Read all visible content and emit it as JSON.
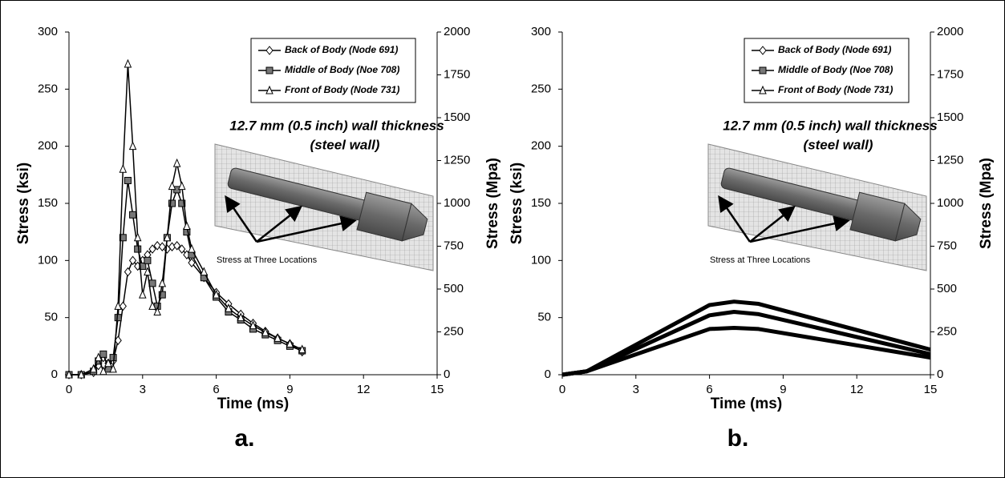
{
  "chart_data": [
    {
      "type": "line",
      "label": "a.",
      "xlabel": "Time (ms)",
      "ylabel": "Stress (ksi)",
      "y2label": "Stress (Mpa)",
      "annotations": [
        "12.7 mm (0.5 inch) wall thickness",
        "(steel wall)",
        "Stress at Three Locations"
      ],
      "xlim": [
        0,
        15
      ],
      "xticks": [
        0,
        3,
        6,
        9,
        12,
        15
      ],
      "ylim": [
        0,
        300
      ],
      "yticks": [
        0,
        50,
        100,
        150,
        200,
        250,
        300
      ],
      "y2lim": [
        0,
        2000
      ],
      "y2ticks": [
        0,
        250,
        500,
        750,
        1000,
        1250,
        1500,
        1750,
        2000
      ],
      "markers": true,
      "line_width": 1.5,
      "x": [
        0,
        0.5,
        1,
        1.2,
        1.4,
        1.6,
        1.8,
        2,
        2.2,
        2.4,
        2.6,
        2.8,
        3,
        3.2,
        3.4,
        3.6,
        3.8,
        4,
        4.2,
        4.4,
        4.6,
        4.8,
        5,
        5.5,
        6,
        6.5,
        7,
        7.5,
        8,
        8.5,
        9,
        9.5
      ],
      "series": [
        {
          "name": "Back of Body (Node 691)",
          "color": "#000000",
          "marker": "diamond",
          "values": [
            0,
            0,
            2,
            8,
            15,
            10,
            12,
            30,
            60,
            90,
            100,
            95,
            100,
            105,
            110,
            113,
            112,
            110,
            112,
            113,
            110,
            105,
            98,
            85,
            72,
            62,
            53,
            45,
            38,
            32,
            27,
            20
          ]
        },
        {
          "name": "Middle of Body (Noe 708)",
          "color": "#000000",
          "marker": "square",
          "values": [
            0,
            0,
            3,
            12,
            18,
            5,
            15,
            50,
            120,
            170,
            140,
            110,
            95,
            100,
            80,
            60,
            70,
            120,
            150,
            162,
            150,
            125,
            105,
            85,
            68,
            55,
            48,
            40,
            35,
            30,
            25,
            21
          ]
        },
        {
          "name": "Front of Body (Node 731)",
          "color": "#000000",
          "marker": "triangle",
          "values": [
            0,
            0,
            5,
            15,
            3,
            10,
            5,
            60,
            180,
            272,
            200,
            120,
            70,
            90,
            60,
            55,
            80,
            120,
            165,
            185,
            165,
            130,
            110,
            90,
            70,
            58,
            50,
            43,
            37,
            32,
            27,
            22
          ]
        }
      ]
    },
    {
      "type": "line",
      "label": "b.",
      "xlabel": "Time (ms)",
      "ylabel": "Stress (ksi)",
      "y2label": "Stress (Mpa)",
      "annotations": [
        "12.7 mm (0.5 inch) wall thickness",
        "(steel wall)",
        "Stress at Three Locations"
      ],
      "xlim": [
        0,
        15
      ],
      "xticks": [
        0,
        3,
        6,
        9,
        12,
        15
      ],
      "ylim": [
        0,
        300
      ],
      "yticks": [
        0,
        50,
        100,
        150,
        200,
        250,
        300
      ],
      "y2lim": [
        0,
        2000
      ],
      "y2ticks": [
        0,
        250,
        500,
        750,
        1000,
        1250,
        1500,
        1750,
        2000
      ],
      "markers": false,
      "line_width": 5,
      "x": [
        0,
        1,
        6,
        7,
        8,
        15
      ],
      "series": [
        {
          "name": "Back of Body (Node 691)",
          "color": "#000000",
          "marker": "diamond",
          "values": [
            0,
            3,
            40,
            41,
            40,
            15
          ]
        },
        {
          "name": "Middle of Body (Noe 708)",
          "color": "#000000",
          "marker": "square",
          "values": [
            0,
            3,
            52,
            55,
            53,
            18
          ]
        },
        {
          "name": "Front of Body (Node 731)",
          "color": "#000000",
          "marker": "triangle",
          "values": [
            0,
            3,
            61,
            64,
            62,
            22
          ]
        }
      ]
    }
  ]
}
